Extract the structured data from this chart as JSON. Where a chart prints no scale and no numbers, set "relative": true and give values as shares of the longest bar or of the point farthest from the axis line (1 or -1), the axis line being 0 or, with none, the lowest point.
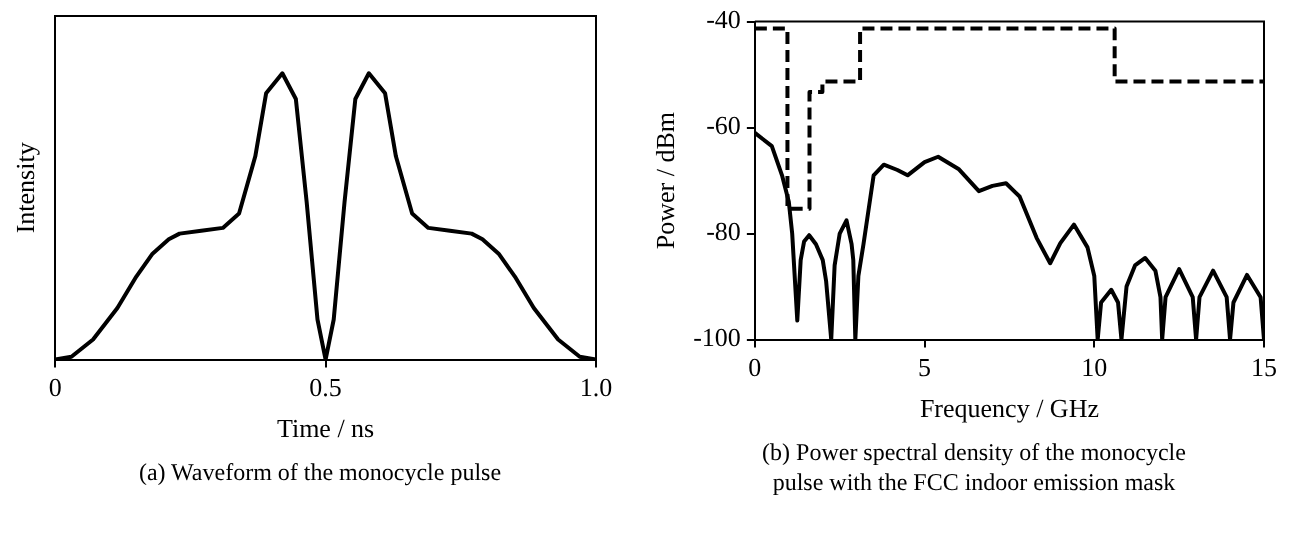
{
  "chart_data": [
    {
      "type": "line",
      "title": "(a)  Waveform of the monocycle pulse",
      "xlabel": "Time / ns",
      "ylabel": "Intensity",
      "relative": true,
      "xlim": [
        0,
        1
      ],
      "xticks": [
        0,
        {
          "value": 0.5,
          "label": "0.5"
        },
        {
          "value": 1,
          "label": "1.0"
        }
      ],
      "grid": false,
      "legend": false,
      "marker": "none",
      "series": [
        {
          "color": "#000000",
          "x": [
            0,
            0.03,
            0.07,
            0.115,
            0.15,
            0.18,
            0.21,
            0.23,
            0.27,
            0.31,
            0.34,
            0.37,
            0.39,
            0.42,
            0.445,
            0.465,
            0.485,
            0.5,
            0.515,
            0.535,
            0.555,
            0.58,
            0.61,
            0.63,
            0.66,
            0.69,
            0.73,
            0.77,
            0.79,
            0.82,
            0.85,
            0.885,
            0.93,
            0.97,
            1
          ],
          "values": [
            0,
            0.01,
            0.07,
            0.18,
            0.29,
            0.37,
            0.42,
            0.44,
            0.45,
            0.46,
            0.51,
            0.71,
            0.93,
            1,
            0.91,
            0.55,
            0.14,
            0,
            0.14,
            0.55,
            0.91,
            1,
            0.93,
            0.71,
            0.51,
            0.46,
            0.45,
            0.44,
            0.42,
            0.37,
            0.29,
            0.18,
            0.07,
            0.01,
            0
          ]
        }
      ]
    },
    {
      "type": "line",
      "title": "(b)  Power spectral density of the monocycle pulse with the FCC indoor emission mask",
      "xlabel": "Frequency / GHz",
      "ylabel": "Power / dBm",
      "xlim": [
        0,
        15
      ],
      "xticks": [
        0,
        5,
        10,
        15
      ],
      "ylim": [
        -100,
        -40
      ],
      "yticks": [
        -100,
        -80,
        -60,
        -40
      ],
      "grid": false,
      "legend": false,
      "marker": "none",
      "series": [
        {
          "type": "line",
          "color": "#000000",
          "line_style": "solid",
          "x": [
            0,
            0.5,
            0.8,
            1.0,
            1.1,
            1.25,
            1.35,
            1.45,
            1.6,
            1.8,
            2.0,
            2.1,
            2.25,
            2.35,
            2.5,
            2.7,
            2.85,
            2.9,
            2.96,
            3.05,
            3.2,
            3.5,
            3.8,
            4.2,
            4.5,
            5.0,
            5.4,
            6.0,
            6.6,
            7.0,
            7.4,
            7.8,
            8.3,
            8.7,
            9.0,
            9.4,
            9.8,
            10.0,
            10.1,
            10.2,
            10.5,
            10.7,
            10.8,
            10.95,
            11.2,
            11.5,
            11.8,
            11.95,
            12.0,
            12.1,
            12.5,
            12.9,
            13.0,
            13.1,
            13.5,
            13.9,
            14.0,
            14.1,
            14.5,
            14.9,
            15.0
          ],
          "values": [
            -61,
            -63.5,
            -69,
            -74,
            -80,
            -96.4,
            -85,
            -81.5,
            -80.3,
            -82,
            -85,
            -89,
            -100,
            -86,
            -80,
            -77.5,
            -82,
            -85,
            -100,
            -88,
            -82,
            -69,
            -67,
            -68,
            -69,
            -66.5,
            -65.5,
            -67.8,
            -72,
            -71,
            -70.5,
            -73,
            -80.8,
            -85.6,
            -81.8,
            -78.3,
            -82.6,
            -88,
            -100,
            -93,
            -90.6,
            -93,
            -100,
            -90,
            -86,
            -84.6,
            -87,
            -92,
            -100,
            -92,
            -86.7,
            -92,
            -100,
            -92,
            -87,
            -92,
            -100,
            -93,
            -87.8,
            -92,
            -100
          ]
        },
        {
          "type": "step",
          "color": "#000000",
          "line_style": "dashed",
          "x": [
            0,
            0.96,
            1.61,
            1.99,
            3.1,
            10.6,
            15
          ],
          "values": [
            -41.3,
            -75.3,
            -53.3,
            -51.3,
            -41.3,
            -51.3,
            -51.3
          ]
        }
      ]
    }
  ]
}
